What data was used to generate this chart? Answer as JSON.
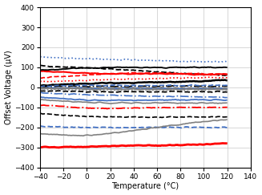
{
  "xlabel": "Temperature (°C)",
  "ylabel": "Offset Voltage (µV)",
  "xlim": [
    -40,
    140
  ],
  "ylim": [
    -400,
    400
  ],
  "xticks": [
    -40,
    -20,
    0,
    20,
    40,
    60,
    80,
    100,
    120,
    140
  ],
  "yticks": [
    -400,
    -300,
    -200,
    -100,
    0,
    100,
    200,
    300,
    400
  ],
  "background_color": "#ffffff",
  "grid_color": "#c8c8c8",
  "lines": [
    {
      "color": "#4472c4",
      "style": "dotted",
      "lw": 1.2,
      "seed": 1,
      "vals": [
        152,
        150,
        147,
        144,
        142,
        140,
        137,
        134,
        131,
        129,
        128
      ],
      "temps": [
        -40,
        -28,
        -16,
        -4,
        8,
        20,
        40,
        60,
        80,
        100,
        120
      ]
    },
    {
      "color": "#000000",
      "style": "dashed",
      "lw": 1.3,
      "seed": 2,
      "vals": [
        108,
        105,
        102,
        98,
        96,
        92,
        85,
        78,
        70,
        64,
        60
      ],
      "temps": [
        -40,
        -28,
        -16,
        -4,
        8,
        20,
        40,
        60,
        80,
        100,
        120
      ]
    },
    {
      "color": "#ff0000",
      "style": "solid",
      "lw": 1.5,
      "seed": 3,
      "vals": [
        80,
        78,
        75,
        72,
        70,
        68,
        68,
        68,
        66,
        65,
        65
      ],
      "temps": [
        -40,
        -28,
        -16,
        -4,
        8,
        20,
        40,
        60,
        80,
        100,
        120
      ]
    },
    {
      "color": "#000000",
      "style": "solid",
      "lw": 1.8,
      "seed": 4,
      "vals": [
        10,
        12,
        15,
        18,
        20,
        22,
        24,
        26,
        28,
        32,
        36
      ],
      "temps": [
        -40,
        -28,
        -16,
        -4,
        8,
        20,
        40,
        60,
        80,
        100,
        120
      ]
    },
    {
      "color": "#4472c4",
      "style": "solid",
      "lw": 1.5,
      "seed": 5,
      "vals": [
        -2,
        -3,
        -4,
        -4,
        -4,
        -4,
        -4,
        -5,
        -5,
        -5,
        -5
      ],
      "temps": [
        -40,
        -28,
        -16,
        -4,
        8,
        20,
        40,
        60,
        80,
        100,
        120
      ]
    },
    {
      "color": "#808080",
      "style": "solid",
      "lw": 1.2,
      "seed": 6,
      "vals": [
        -6,
        -7,
        -8,
        -9,
        -10,
        -10,
        -10,
        -10,
        -10,
        -10,
        -10
      ],
      "temps": [
        -40,
        -28,
        -16,
        -4,
        8,
        20,
        40,
        60,
        80,
        100,
        120
      ]
    },
    {
      "color": "#000000",
      "style": "dashed",
      "lw": 1.3,
      "seed": 7,
      "vals": [
        -16,
        -18,
        -20,
        -21,
        -22,
        -22,
        -22,
        -22,
        -22,
        -22,
        -22
      ],
      "temps": [
        -40,
        -28,
        -16,
        -4,
        8,
        20,
        40,
        60,
        80,
        100,
        120
      ]
    },
    {
      "color": "#4472c4",
      "style": "solid",
      "lw": 1.3,
      "seed": 8,
      "vals": [
        -50,
        -54,
        -58,
        -62,
        -64,
        -65,
        -64,
        -63,
        -62,
        -62,
        -62
      ],
      "temps": [
        -40,
        -28,
        -16,
        -4,
        8,
        20,
        40,
        60,
        80,
        100,
        120
      ]
    },
    {
      "color": "#808080",
      "style": "solid",
      "lw": 1.2,
      "seed": 9,
      "vals": [
        -62,
        -66,
        -70,
        -74,
        -76,
        -78,
        -78,
        -78,
        -78,
        -78,
        -78
      ],
      "temps": [
        -40,
        -28,
        -16,
        -4,
        8,
        20,
        40,
        60,
        80,
        100,
        120
      ]
    },
    {
      "color": "#ff0000",
      "style": "dashdot",
      "lw": 1.3,
      "seed": 10,
      "vals": [
        -88,
        -92,
        -98,
        -102,
        -104,
        -105,
        -103,
        -101,
        -100,
        -100,
        -100
      ],
      "temps": [
        -40,
        -28,
        -16,
        -4,
        8,
        20,
        40,
        60,
        80,
        100,
        120
      ]
    },
    {
      "color": "#000000",
      "style": "dashed",
      "lw": 1.2,
      "seed": 11,
      "vals": [
        -132,
        -136,
        -140,
        -143,
        -146,
        -148,
        -148,
        -148,
        -148,
        -148,
        -148
      ],
      "temps": [
        -40,
        -28,
        -16,
        -4,
        8,
        20,
        40,
        60,
        80,
        100,
        120
      ]
    },
    {
      "color": "#4472c4",
      "style": "dashed",
      "lw": 1.3,
      "seed": 12,
      "vals": [
        -193,
        -196,
        -198,
        -199,
        -200,
        -200,
        -200,
        -200,
        -200,
        -200,
        -200
      ],
      "temps": [
        -40,
        -28,
        -16,
        -4,
        8,
        20,
        40,
        60,
        80,
        100,
        120
      ]
    },
    {
      "color": "#808080",
      "style": "solid",
      "lw": 1.2,
      "seed": 13,
      "vals": [
        -232,
        -236,
        -240,
        -240,
        -238,
        -230,
        -215,
        -200,
        -185,
        -170,
        -160
      ],
      "temps": [
        -40,
        -28,
        -16,
        -4,
        8,
        20,
        40,
        60,
        80,
        100,
        120
      ]
    },
    {
      "color": "#ff0000",
      "style": "solid",
      "lw": 2.0,
      "seed": 14,
      "vals": [
        -298,
        -298,
        -298,
        -297,
        -295,
        -293,
        -291,
        -290,
        -288,
        -285,
        -278
      ],
      "temps": [
        -40,
        -28,
        -16,
        -4,
        8,
        20,
        40,
        60,
        80,
        100,
        120
      ]
    },
    {
      "color": "#000000",
      "style": "dashdot",
      "lw": 1.2,
      "seed": 15,
      "vals": [
        4,
        5,
        5,
        5,
        5,
        5,
        5,
        5,
        5,
        5,
        5
      ],
      "temps": [
        -40,
        -28,
        -16,
        -4,
        8,
        20,
        40,
        60,
        80,
        100,
        120
      ]
    },
    {
      "color": "#4472c4",
      "style": "dashed",
      "lw": 1.2,
      "seed": 16,
      "vals": [
        8,
        9,
        10,
        10,
        10,
        10,
        10,
        10,
        10,
        10,
        10
      ],
      "temps": [
        -40,
        -28,
        -16,
        -4,
        8,
        20,
        40,
        60,
        80,
        100,
        120
      ]
    },
    {
      "color": "#808080",
      "style": "dashed",
      "lw": 1.2,
      "seed": 17,
      "vals": [
        -2,
        -2,
        -2,
        -2,
        -2,
        -2,
        -2,
        -2,
        -2,
        -2,
        -2
      ],
      "temps": [
        -40,
        -28,
        -16,
        -4,
        8,
        20,
        40,
        60,
        80,
        100,
        120
      ]
    },
    {
      "color": "#ff0000",
      "style": "dashed",
      "lw": 1.2,
      "seed": 18,
      "vals": [
        48,
        52,
        56,
        60,
        64,
        68,
        70,
        72,
        70,
        68,
        66
      ],
      "temps": [
        -40,
        -28,
        -16,
        -4,
        8,
        20,
        40,
        60,
        80,
        100,
        120
      ]
    },
    {
      "color": "#000000",
      "style": "solid",
      "lw": 1.3,
      "seed": 19,
      "vals": [
        88,
        90,
        93,
        96,
        98,
        100,
        100,
        100,
        100,
        100,
        100
      ],
      "temps": [
        -40,
        -28,
        -16,
        -4,
        8,
        20,
        40,
        60,
        80,
        100,
        120
      ]
    },
    {
      "color": "#4472c4",
      "style": "dashdot",
      "lw": 1.2,
      "seed": 20,
      "vals": [
        -28,
        -30,
        -32,
        -35,
        -38,
        -40,
        -42,
        -44,
        -46,
        -48,
        -50
      ],
      "temps": [
        -40,
        -28,
        -16,
        -4,
        8,
        20,
        40,
        60,
        80,
        100,
        120
      ]
    },
    {
      "color": "#808080",
      "style": "dotted",
      "lw": 1.2,
      "seed": 21,
      "vals": [
        -12,
        -12,
        -12,
        -12,
        -12,
        -12,
        -12,
        -12,
        -12,
        -12,
        -12
      ],
      "temps": [
        -40,
        -28,
        -16,
        -4,
        8,
        20,
        40,
        60,
        80,
        100,
        120
      ]
    },
    {
      "color": "#ff0000",
      "style": "dotted",
      "lw": 1.2,
      "seed": 22,
      "vals": [
        28,
        30,
        32,
        35,
        38,
        40,
        42,
        45,
        47,
        49,
        50
      ],
      "temps": [
        -40,
        -28,
        -16,
        -4,
        8,
        20,
        40,
        60,
        80,
        100,
        120
      ]
    }
  ]
}
